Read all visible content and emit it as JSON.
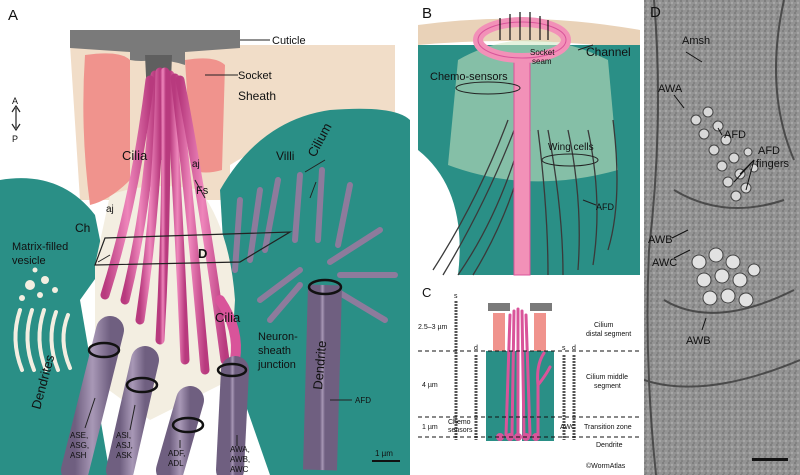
{
  "panelA": {
    "letter": "A",
    "labels": {
      "cuticle": "Cuticle",
      "socket": "Socket",
      "sheath": "Sheath",
      "cilia": "Cilia",
      "cilia2": "Cilia",
      "aj1": "aj",
      "aj2": "aj",
      "fs": "Fs",
      "villi": "Villi",
      "cilium": "Cilium",
      "ch": "Ch",
      "matrix1": "Matrix-filled",
      "matrix2": "vesicle",
      "d": "D",
      "dendrites": "Dendrites",
      "dendrite": "Dendrite",
      "junction1": "Neuron-",
      "junction2": "sheath",
      "junction3": "junction",
      "afd": "AFD",
      "g1a": "ASE,",
      "g1b": "ASG,",
      "g1c": "ASH",
      "g2a": "ASI,",
      "g2b": "ASJ,",
      "g2c": "ASK",
      "g3a": "ADF,",
      "g3b": "ADL",
      "g4a": "AWA,",
      "g4b": "AWB,",
      "g4c": "AWC",
      "axisA": "A",
      "axisP": "P",
      "scale": "1 µm"
    }
  },
  "panelB": {
    "letter": "B",
    "labels": {
      "socketSeam1": "Socket",
      "socketSeam2": "seam",
      "channel": "Channel",
      "chemo": "Chemo-sensors",
      "wing": "Wing cells",
      "afd": "AFD"
    }
  },
  "panelC": {
    "letter": "C",
    "labels": {
      "s1": "s",
      "d1": "d",
      "s2": "s",
      "d2": "d",
      "dim1": "2.5–3 µm",
      "dim2": "4 µm",
      "dim3": "1 µm",
      "distal1": "Cilium",
      "distal2": "distal segment",
      "middle1": "Cilium middle",
      "middle2": "segment",
      "transition": "Transition zone",
      "dendrite": "Dendrite",
      "chemo1": "Chemo",
      "chemo2": "sensors",
      "awc": "AWC",
      "credit": "©WormAtlas"
    }
  },
  "panelD": {
    "letter": "D",
    "labels": {
      "amsh": "Amsh",
      "awa": "AWA",
      "afd": "AFD",
      "fingers1": "AFD",
      "fingers2": "fingers",
      "awb1": "AWB",
      "awc": "AWC",
      "awb2": "AWB"
    }
  },
  "colors": {
    "teal": "#2a8f86",
    "tealDark": "#1f7069",
    "pink": "#d9549a",
    "pinkLight": "#ec8fbd",
    "salmon": "#f0938d",
    "tan": "#f1ddc8",
    "cuticle": "#7a7a7a",
    "purple": "#8d7b9c",
    "matrix": "#f3eee1"
  }
}
